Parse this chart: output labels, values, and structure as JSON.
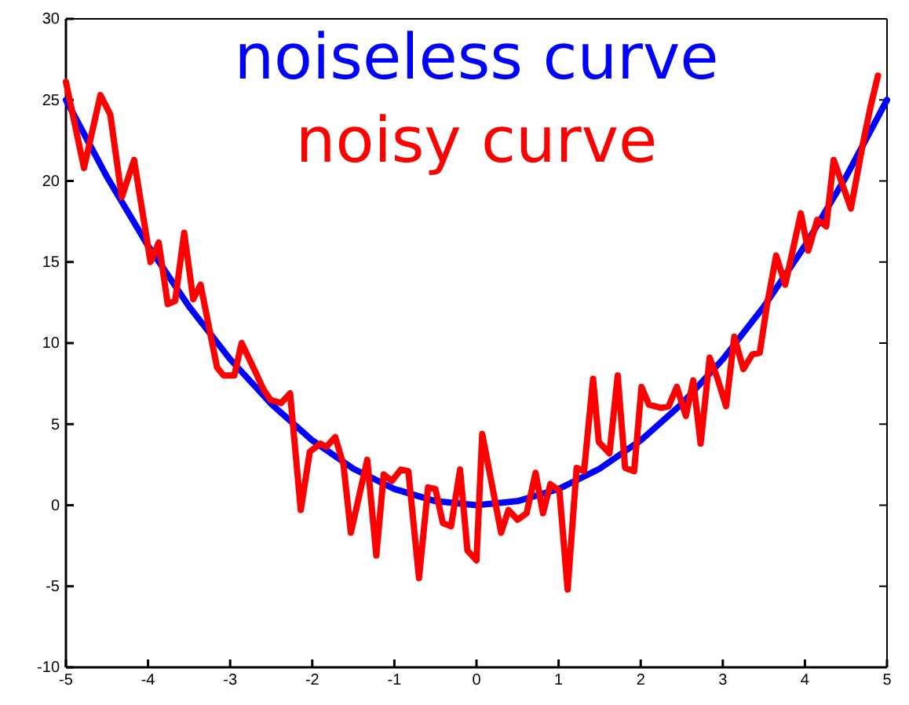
{
  "chart_data": {
    "type": "line",
    "legend": "top",
    "xlim": [
      -5,
      5
    ],
    "ylim": [
      -10,
      30
    ],
    "xticks": [
      -5,
      -4,
      -3,
      -2,
      -1,
      0,
      1,
      2,
      3,
      4,
      5
    ],
    "yticks": [
      -10,
      -5,
      0,
      5,
      10,
      15,
      20,
      25,
      30
    ],
    "line_style": "solid",
    "series": [
      {
        "name": "noiseless curve",
        "color": "#0000ff",
        "x": [
          -5,
          -4.5,
          -4,
          -3.5,
          -3,
          -2.5,
          -2,
          -1.5,
          -1,
          -0.5,
          0,
          0.5,
          1,
          1.5,
          2,
          2.5,
          3,
          3.5,
          4,
          4.5,
          5
        ],
        "values": [
          25,
          20.25,
          16,
          12.25,
          9,
          6.25,
          4,
          2.25,
          1,
          0.25,
          0,
          0.25,
          1,
          2.25,
          4,
          6.25,
          9,
          12.25,
          16,
          20.25,
          25
        ]
      },
      {
        "name": "noisy curve",
        "color": "#ff0000",
        "x": [
          -5.0,
          -4.78,
          -4.58,
          -4.46,
          -4.32,
          -4.17,
          -3.97,
          -3.87,
          -3.76,
          -3.67,
          -3.56,
          -3.45,
          -3.36,
          -3.16,
          -3.08,
          -2.95,
          -2.86,
          -2.69,
          -2.6,
          -2.51,
          -2.38,
          -2.27,
          -2.14,
          -2.03,
          -1.9,
          -1.83,
          -1.72,
          -1.62,
          -1.53,
          -1.33,
          -1.22,
          -1.13,
          -1.03,
          -0.92,
          -0.83,
          -0.7,
          -0.59,
          -0.5,
          -0.41,
          -0.31,
          -0.2,
          -0.11,
          0.0,
          0.07,
          0.3,
          0.39,
          0.5,
          0.61,
          0.72,
          0.81,
          0.9,
          1.01,
          1.11,
          1.22,
          1.31,
          1.42,
          1.49,
          1.62,
          1.72,
          1.81,
          1.92,
          2.01,
          2.1,
          2.25,
          2.34,
          2.44,
          2.55,
          2.64,
          2.73,
          2.84,
          2.93,
          3.04,
          3.14,
          3.25,
          3.36,
          3.45,
          3.54,
          3.65,
          3.76,
          3.95,
          4.04,
          4.15,
          4.26,
          4.35,
          4.56,
          4.71,
          4.8,
          4.89
        ],
        "values": [
          26.1,
          20.8,
          25.3,
          24.1,
          19.0,
          21.3,
          15.0,
          16.2,
          12.4,
          12.6,
          16.8,
          12.7,
          13.6,
          8.5,
          8.0,
          8.0,
          10.0,
          8.2,
          7.2,
          6.5,
          6.3,
          6.9,
          -0.3,
          3.3,
          3.8,
          3.6,
          4.2,
          2.5,
          -1.7,
          2.8,
          -3.1,
          1.9,
          1.5,
          2.2,
          2.1,
          -4.5,
          1.1,
          1.0,
          -1.1,
          -1.3,
          2.2,
          -2.8,
          -3.4,
          4.4,
          -1.7,
          -0.3,
          -0.9,
          -0.5,
          2.0,
          -0.5,
          1.3,
          0.9,
          -5.2,
          2.3,
          2.1,
          7.8,
          3.9,
          3.2,
          8.0,
          2.3,
          2.1,
          7.3,
          6.2,
          6.0,
          6.1,
          7.3,
          5.5,
          7.7,
          3.8,
          9.1,
          7.9,
          6.1,
          10.4,
          8.4,
          9.3,
          9.4,
          12.4,
          15.4,
          13.6,
          18.0,
          15.7,
          17.6,
          17.2,
          21.3,
          18.3,
          22.4,
          24.6,
          26.5
        ]
      }
    ]
  }
}
